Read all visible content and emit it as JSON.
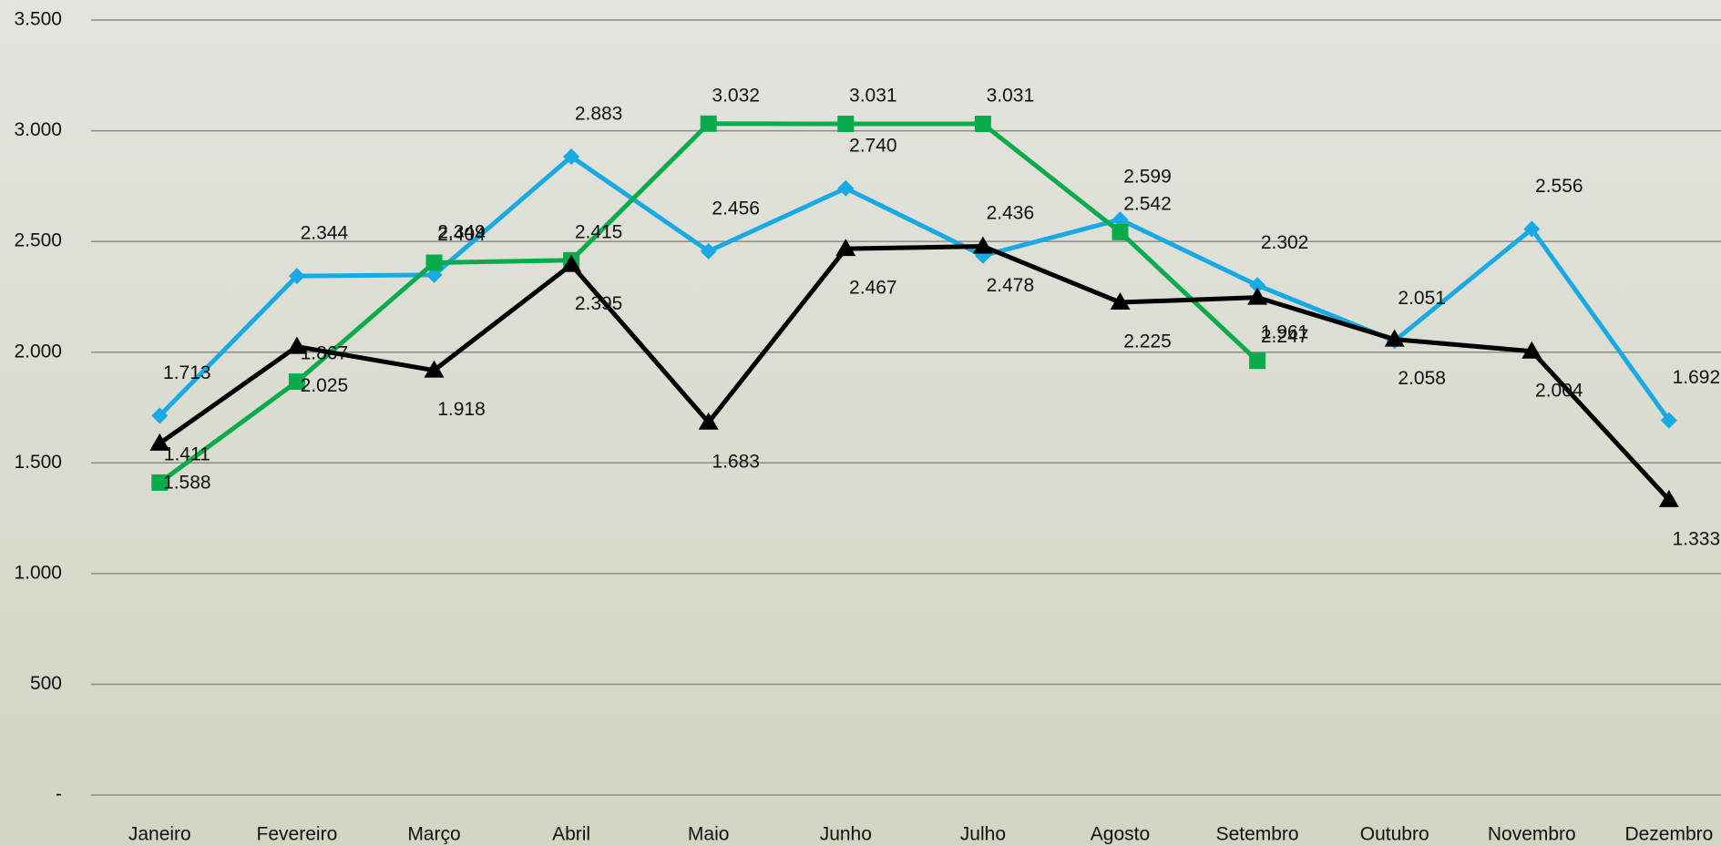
{
  "chart_data": {
    "type": "line",
    "categories": [
      "Janeiro",
      "Fevereiro",
      "Março",
      "Abril",
      "Maio",
      "Junho",
      "Julho",
      "Agosto",
      "Setembro",
      "Outubro",
      "Novembro",
      "Dezembro"
    ],
    "series": [
      {
        "color": "#19a9e3",
        "marker": "diamond",
        "values": [
          1713,
          2344,
          2349,
          2883,
          2456,
          2740,
          2436,
          2599,
          2302,
          2051,
          2556,
          1692
        ],
        "value_labels": [
          "1.713",
          "2.344",
          "2.349",
          "2.883",
          "2.456",
          "2.740",
          "2.436",
          "2.599",
          "2.302",
          "2.051",
          "2.556",
          "1.692"
        ]
      },
      {
        "color": "#0aab4c",
        "marker": "square",
        "values": [
          1411,
          1867,
          2404,
          2415,
          3032,
          3031,
          3031,
          2542,
          1961,
          null,
          null,
          null
        ],
        "value_labels": [
          "1.411",
          "1.867",
          "2.404",
          "2.415",
          "3.032",
          "3.031",
          "3.031",
          "2.542",
          "1.961",
          null,
          null,
          null
        ]
      },
      {
        "color": "#000000",
        "marker": "triangle",
        "values": [
          1588,
          2025,
          1918,
          2395,
          1683,
          2467,
          2478,
          2225,
          2247,
          2058,
          2004,
          1333
        ],
        "value_labels": [
          "1.588",
          "2.025",
          "1.918",
          "2.395",
          "1.683",
          "2.467",
          "2.478",
          "2.225",
          "2.247",
          "2.058",
          "2.004",
          "1.333"
        ]
      }
    ],
    "ylim": [
      0,
      3500
    ],
    "yticks": [
      {
        "value": 0,
        "label": "-"
      },
      500,
      {
        "value": 1000,
        "label": "1.000"
      },
      {
        "value": 1500,
        "label": "1.500"
      },
      {
        "value": 2000,
        "label": "2.000"
      },
      {
        "value": 2500,
        "label": "2.500"
      },
      {
        "value": 3000,
        "label": "3.000"
      },
      {
        "value": 3500,
        "label": "3.500"
      }
    ],
    "grid": true
  }
}
